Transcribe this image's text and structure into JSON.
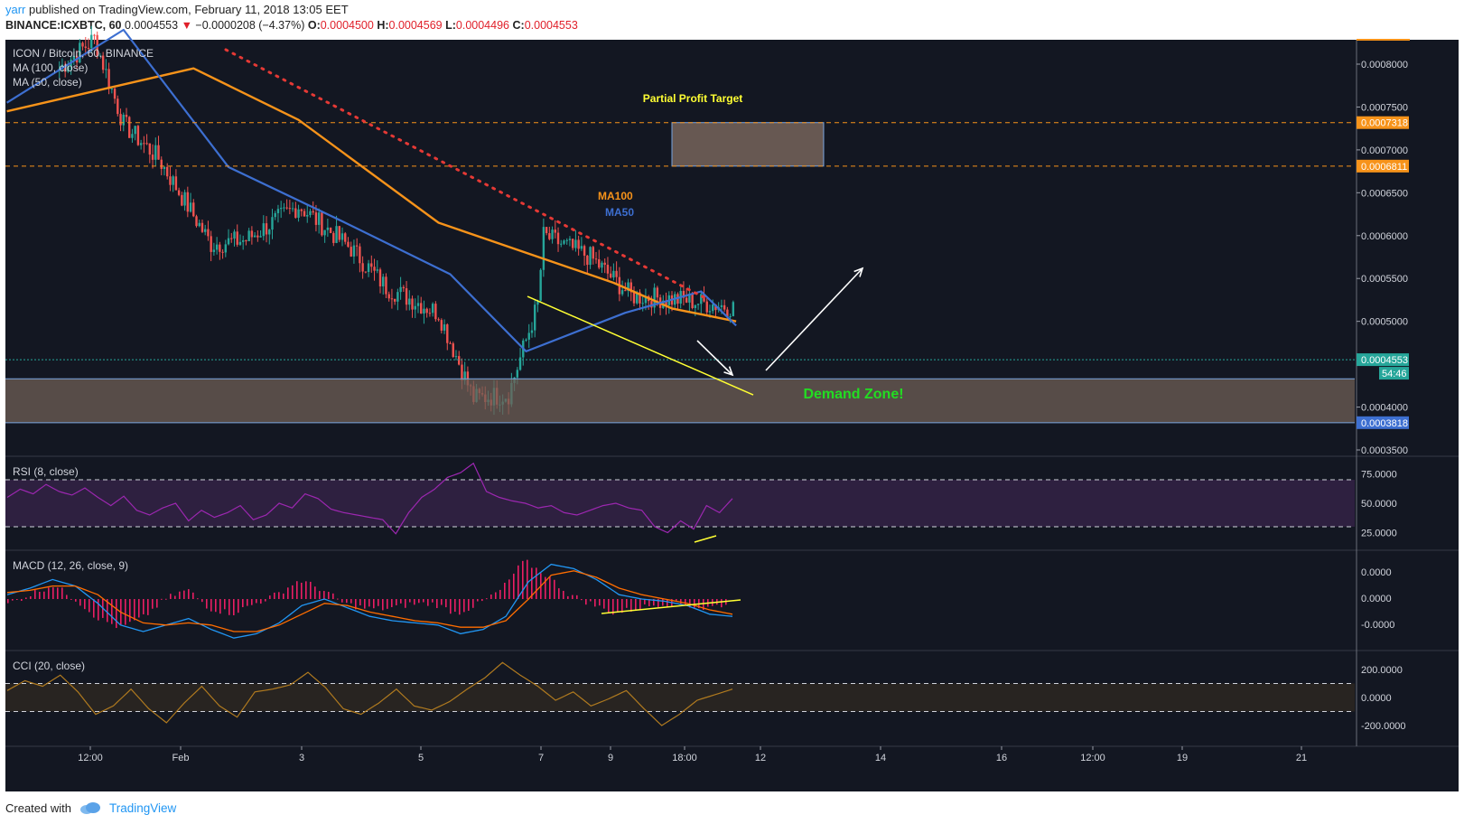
{
  "header": {
    "user": "yarr",
    "published_text": "published on TradingView.com, February 11, 2018 13:05 EET",
    "symbol": "BINANCE:ICXBTC, 60",
    "last": "0.0004553",
    "change": "−0.0000208 (−4.37%)",
    "open_label": "O:",
    "open": "0.0004500",
    "high_label": "H:",
    "high": "0.0004569",
    "low_label": "L:",
    "low": "0.0004496",
    "close_label": "C:",
    "close": "0.0004553"
  },
  "footer": {
    "created_with": "Created with",
    "brand": "TradingView"
  },
  "colors": {
    "background": "#131722",
    "bull": "#26a69a",
    "bear": "#ef5350",
    "ma100": "#f7931a",
    "ma50": "#3d6fd1",
    "rsi": "#9c27b0",
    "cci": "#b07a1f",
    "annotation_yellow": "#ffff33",
    "demand_text": "#22dd22",
    "zone_fill": "#6f5f55"
  },
  "chart_data": [
    {
      "type": "candlestick",
      "title": "ICON / Bitcoin, 60, BINANCE",
      "legend": [
        "MA (100, close)",
        "MA (50, close)"
      ],
      "y_ticks": [
        "0.0008000",
        "0.0007500",
        "0.0007000",
        "0.0006500",
        "0.0006000",
        "0.0005500",
        "0.0005000",
        "0.0004000",
        "0.0003500"
      ],
      "x_ticks": [
        "12:00",
        "Feb",
        "3",
        "5",
        "7",
        "9",
        "18:00",
        "12",
        "14",
        "16",
        "12:00",
        "19",
        "21"
      ],
      "ylim": [
        0.00034,
        0.00084
      ],
      "x_anchors": [
        {
          "label": "Jan 31 12:00",
          "index": 0
        },
        {
          "label": "Feb 7",
          "index": 152
        },
        {
          "label": "Feb 10 18:00",
          "index": 230
        }
      ],
      "series_close_keypoints": [
        {
          "x": "Jan 31 02:00",
          "y": 0.000795
        },
        {
          "x": "Jan 31 14:00",
          "y": 0.00083
        },
        {
          "x": "Feb 1 00:00",
          "y": 0.00073
        },
        {
          "x": "Feb 1 12:00",
          "y": 0.00069
        },
        {
          "x": "Feb 2 06:00",
          "y": 0.00059
        },
        {
          "x": "Feb 2 18:00",
          "y": 0.000595
        },
        {
          "x": "Feb 3 12:00",
          "y": 0.000635
        },
        {
          "x": "Feb 4 06:00",
          "y": 0.000585
        },
        {
          "x": "Feb 4 18:00",
          "y": 0.00054
        },
        {
          "x": "Feb 5 12:00",
          "y": 0.00051
        },
        {
          "x": "Feb 6 00:00",
          "y": 0.00041
        },
        {
          "x": "Feb 6 12:00",
          "y": 0.000415
        },
        {
          "x": "Feb 6 22:00",
          "y": 0.00052
        },
        {
          "x": "Feb 7 00:00",
          "y": 0.0006
        },
        {
          "x": "Feb 7 16:00",
          "y": 0.000575
        },
        {
          "x": "Feb 8 06:00",
          "y": 0.00053
        },
        {
          "x": "Feb 9 00:00",
          "y": 0.000525
        },
        {
          "x": "Feb 10 06:00",
          "y": 0.00051
        },
        {
          "x": "Feb 10 16:00",
          "y": 0.00047
        },
        {
          "x": "Feb 11 02:00",
          "y": 0.00044
        },
        {
          "x": "Feb 11 13:00",
          "y": 0.000455
        }
      ],
      "ma100_keypoints": [
        {
          "x": "Jan 31 02:00",
          "y": 0.000745
        },
        {
          "x": "Feb 1 00:00",
          "y": 0.000795
        },
        {
          "x": "Feb 2 06:00",
          "y": 0.000735
        },
        {
          "x": "Feb 4 06:00",
          "y": 0.000615
        },
        {
          "x": "Feb 6 00:00",
          "y": 0.000545
        },
        {
          "x": "Feb 8 00:00",
          "y": 0.000515
        },
        {
          "x": "Feb 11 13:00",
          "y": 0.0005
        }
      ],
      "ma50_keypoints": [
        {
          "x": "Jan 31 02:00",
          "y": 0.000755
        },
        {
          "x": "Jan 31 18:00",
          "y": 0.00084
        },
        {
          "x": "Feb 2 00:00",
          "y": 0.00068
        },
        {
          "x": "Feb 3 12:00",
          "y": 0.000615
        },
        {
          "x": "Feb 5 00:00",
          "y": 0.000555
        },
        {
          "x": "Feb 6 12:00",
          "y": 0.000465
        },
        {
          "x": "Feb 8 00:00",
          "y": 0.00051
        },
        {
          "x": "Feb 9 12:00",
          "y": 0.000535
        },
        {
          "x": "Feb 11 13:00",
          "y": 0.000495
        }
      ],
      "price_labels": [
        {
          "value": "0.0007318",
          "color": "#f7931a"
        },
        {
          "value": "0.0006811",
          "color": "#f7931a"
        },
        {
          "value": "0.0004553",
          "color": "#26a69a"
        },
        {
          "value": "0.0003818",
          "color": "#3d6fd1"
        }
      ],
      "countdown": "54:46",
      "annotations": {
        "ma100_label": "MA100",
        "ma50_label": "MA50",
        "target_label": "Partial Profit Target",
        "target_zone": [
          0.0006811,
          0.0007318
        ],
        "demand_label": "Demand Zone!",
        "demand_zone": [
          0.0003818,
          0.000433
        ]
      }
    },
    {
      "type": "line",
      "title": "RSI (8, close)",
      "y_ticks": [
        "75.0000",
        "50.0000",
        "25.0000"
      ],
      "ylim": [
        10,
        90
      ],
      "bands": [
        30,
        70
      ],
      "keypoints": [
        55,
        62,
        58,
        66,
        60,
        57,
        63,
        55,
        48,
        56,
        44,
        40,
        46,
        50,
        35,
        44,
        38,
        42,
        48,
        36,
        40,
        50,
        46,
        58,
        54,
        45,
        42,
        40,
        38,
        36,
        24,
        42,
        55,
        62,
        72,
        76,
        84,
        60,
        55,
        52,
        50,
        46,
        48,
        42,
        40,
        44,
        48,
        50,
        46,
        44,
        30,
        25,
        35,
        28,
        48,
        42,
        54
      ]
    },
    {
      "type": "line",
      "title": "MACD (12, 26, close, 9)",
      "y_ticks": [
        "0.0000",
        "0.0000",
        "-0.0000"
      ],
      "macd_keypoints": [
        0.2,
        0.5,
        0.9,
        0.6,
        -0.2,
        -1.2,
        -1.5,
        -1.2,
        -0.9,
        -1.4,
        -1.8,
        -1.6,
        -1.1,
        -0.3,
        0.0,
        -0.4,
        -0.8,
        -1.0,
        -1.1,
        -1.2,
        -1.6,
        -1.4,
        -0.8,
        0.8,
        1.6,
        1.4,
        0.9,
        0.2,
        0.0,
        -0.1,
        -0.3,
        -0.7,
        -0.8
      ],
      "signal_keypoints": [
        0.3,
        0.4,
        0.6,
        0.6,
        0.2,
        -0.6,
        -1.1,
        -1.2,
        -1.1,
        -1.2,
        -1.5,
        -1.5,
        -1.2,
        -0.7,
        -0.2,
        -0.3,
        -0.6,
        -0.8,
        -1.0,
        -1.1,
        -1.3,
        -1.3,
        -1.0,
        0.0,
        1.1,
        1.3,
        1.0,
        0.5,
        0.2,
        0.0,
        -0.2,
        -0.5,
        -0.7
      ]
    },
    {
      "type": "line",
      "title": "CCI (20, close)",
      "y_ticks": [
        "200.0000",
        "0.0000",
        "-200.0000"
      ],
      "ylim": [
        -250,
        300
      ],
      "bands": [
        -100,
        100
      ],
      "keypoints": [
        50,
        120,
        80,
        160,
        40,
        -120,
        -60,
        60,
        -80,
        -180,
        -40,
        80,
        -60,
        -140,
        40,
        60,
        90,
        180,
        70,
        -80,
        -120,
        -40,
        60,
        -60,
        -90,
        -30,
        60,
        140,
        250,
        160,
        80,
        -20,
        40,
        -60,
        -10,
        50,
        -80,
        -200,
        -120,
        -20,
        20,
        60
      ]
    }
  ]
}
